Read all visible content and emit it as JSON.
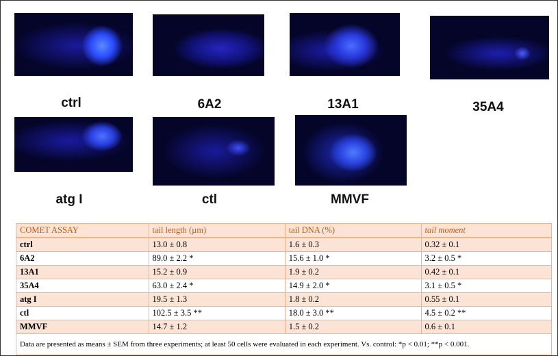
{
  "images": [
    {
      "label": "ctrl"
    },
    {
      "label": "6A2"
    },
    {
      "label": "13A1"
    },
    {
      "label": "35A4"
    },
    {
      "label": "atg I"
    },
    {
      "label": "ctl"
    },
    {
      "label": "MMVF"
    }
  ],
  "table": {
    "header": [
      "COMET ASSAY",
      "tail length (µm)",
      "tail DNA (%)",
      "tail moment"
    ],
    "rows": [
      [
        "ctrl",
        "13.0 ± 0.8",
        "1.6 ± 0.3",
        "0.32 ± 0.1"
      ],
      [
        "6A2",
        "89.0 ± 2.2 *",
        "15.6 ± 1.0 *",
        "3.2 ± 0.5 *"
      ],
      [
        "13A1",
        "15.2 ± 0.9",
        "1.9 ± 0.2",
        "0.42 ± 0.1"
      ],
      [
        "35A4",
        "63.0 ± 2.4 *",
        "14.9 ± 2.0 *",
        "3.1 ± 0.5 *"
      ],
      [
        "atg I",
        "19.5 ± 1.3",
        "1.8 ± 0.2",
        "0.55 ± 0.1"
      ],
      [
        "ctl",
        "102.5 ± 3.5 **",
        "18.0 ± 3.0 **",
        "4.5 ± 0.2 **"
      ],
      [
        "MMVF",
        "14.7 ± 1.2",
        "1.5 ± 0.2",
        "0.6 ± 0.1"
      ]
    ],
    "note": "Data are presented as means ± SEM from three experiments; at least 50 cells were evaluated in each experiment. Vs. control: *p < 0.01; **p < 0.001."
  }
}
